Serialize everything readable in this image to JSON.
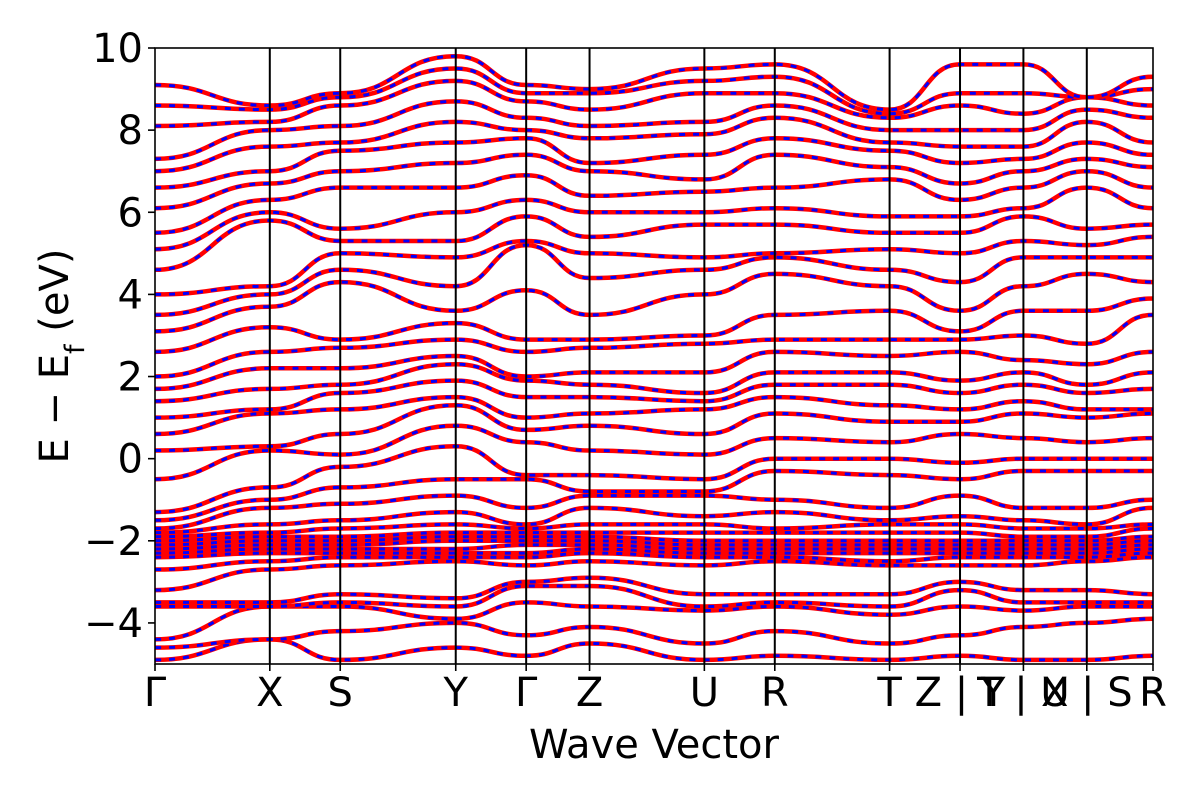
{
  "chart_data": {
    "type": "line",
    "title": "",
    "xlabel": "Wave Vector",
    "ylabel_parts": {
      "main": "E − E",
      "subscript": "f",
      "unit": " (eV)"
    },
    "ylim": [
      -5,
      10
    ],
    "yticks": [
      {
        "value": 10,
        "label": "10"
      },
      {
        "value": 8,
        "label": "8"
      },
      {
        "value": 6,
        "label": "6"
      },
      {
        "value": 4,
        "label": "4"
      },
      {
        "value": 2,
        "label": "2"
      },
      {
        "value": 0,
        "label": "0"
      },
      {
        "value": -2,
        "label": "−2"
      },
      {
        "value": -4,
        "label": "−4"
      }
    ],
    "xlim": [
      0,
      14.17
    ],
    "kpoints": [
      {
        "x": 0.0,
        "label": "Γ"
      },
      {
        "x": 1.63,
        "label": "X"
      },
      {
        "x": 2.63,
        "label": "S"
      },
      {
        "x": 4.27,
        "label": "Y"
      },
      {
        "x": 5.27,
        "label": "Γ"
      },
      {
        "x": 6.17,
        "label": "Z"
      },
      {
        "x": 7.8,
        "label": "U"
      },
      {
        "x": 8.8,
        "label": "R"
      },
      {
        "x": 10.43,
        "label": "T"
      },
      {
        "x": 11.43,
        "label": "Z | Y"
      },
      {
        "x": 12.33,
        "label": "T | U"
      },
      {
        "x": 13.23,
        "label": "X | S"
      },
      {
        "x": 14.17,
        "label": "R"
      }
    ],
    "grid": false,
    "legend": "none",
    "series_colors": {
      "solid": "#ff0000",
      "dashed": "#0000ff"
    },
    "band_segments": [
      {
        "x0": 0.0,
        "x1": 1.63,
        "y0": [
          -4.9,
          -4.6,
          -4.4,
          -3.6,
          -3.5,
          -3.2,
          -2.7,
          -2.4,
          -2.3,
          -2.2,
          -2.1,
          -2.0,
          -1.9,
          -1.8,
          -1.7,
          -1.5,
          -1.3,
          -0.5,
          0.2,
          0.6,
          1.0,
          1.4,
          1.7,
          2.0,
          2.6,
          3.1,
          3.5,
          4.0,
          4.6,
          5.1,
          5.5,
          6.1,
          6.6,
          7.0,
          7.3,
          8.1,
          8.6,
          9.1
        ],
        "y1": [
          -4.4,
          -4.4,
          -3.6,
          -3.6,
          -3.5,
          -2.7,
          -2.5,
          -2.3,
          -2.2,
          -2.1,
          -2.0,
          -1.9,
          -1.8,
          -1.6,
          -1.2,
          -1.0,
          -0.7,
          0.2,
          0.3,
          1.1,
          1.2,
          1.7,
          2.2,
          2.6,
          3.2,
          3.7,
          4.0,
          4.2,
          5.8,
          6.0,
          6.3,
          6.7,
          7.0,
          7.6,
          8.0,
          8.2,
          8.5,
          8.6
        ]
      },
      {
        "x0": 1.63,
        "x1": 2.63,
        "y0": [
          -4.4,
          -4.4,
          -3.6,
          -3.6,
          -3.5,
          -2.7,
          -2.5,
          -2.3,
          -2.2,
          -2.1,
          -2.0,
          -1.9,
          -1.8,
          -1.6,
          -1.2,
          -1.0,
          -0.7,
          0.2,
          0.3,
          1.1,
          1.2,
          1.7,
          2.2,
          2.6,
          3.2,
          3.7,
          4.0,
          4.2,
          5.8,
          6.0,
          6.3,
          6.7,
          7.0,
          7.6,
          8.0,
          8.2,
          8.5,
          8.6
        ],
        "y1": [
          -4.9,
          -4.2,
          -3.6,
          -3.5,
          -3.3,
          -2.6,
          -2.4,
          -2.3,
          -2.2,
          -2.1,
          -2.0,
          -1.9,
          -1.7,
          -1.5,
          -1.1,
          -0.7,
          -0.2,
          0.1,
          0.6,
          1.2,
          1.6,
          1.8,
          2.2,
          2.7,
          2.9,
          4.3,
          4.6,
          5.0,
          5.3,
          5.6,
          6.6,
          7.0,
          7.5,
          7.7,
          8.1,
          8.6,
          8.8,
          8.9
        ]
      },
      {
        "x0": 2.63,
        "x1": 4.27,
        "y0": [
          -4.9,
          -4.2,
          -3.6,
          -3.5,
          -3.3,
          -2.6,
          -2.4,
          -2.3,
          -2.2,
          -2.1,
          -2.0,
          -1.9,
          -1.7,
          -1.5,
          -1.1,
          -0.7,
          -0.2,
          0.1,
          0.6,
          1.2,
          1.6,
          1.8,
          2.2,
          2.7,
          2.9,
          4.3,
          4.6,
          5.0,
          5.3,
          5.6,
          6.6,
          7.0,
          7.5,
          7.7,
          8.1,
          8.6,
          8.8,
          8.9
        ],
        "y1": [
          -4.6,
          -4.0,
          -3.9,
          -3.6,
          -3.4,
          -2.5,
          -2.4,
          -2.3,
          -2.2,
          -2.0,
          -1.9,
          -1.8,
          -1.6,
          -1.3,
          -0.9,
          -0.5,
          0.3,
          0.8,
          1.3,
          1.5,
          1.9,
          2.3,
          2.5,
          2.9,
          3.3,
          3.6,
          4.2,
          4.9,
          5.3,
          6.0,
          6.6,
          7.2,
          7.7,
          8.2,
          8.7,
          9.2,
          9.5,
          9.8
        ]
      },
      {
        "x0": 4.27,
        "x1": 5.27,
        "y0": [
          -4.6,
          -4.0,
          -3.9,
          -3.6,
          -3.4,
          -2.5,
          -2.4,
          -2.3,
          -2.2,
          -2.0,
          -1.9,
          -1.8,
          -1.6,
          -1.3,
          -0.9,
          -0.5,
          0.3,
          0.8,
          1.3,
          1.5,
          1.9,
          2.3,
          2.5,
          2.9,
          3.3,
          3.6,
          4.2,
          4.9,
          5.3,
          6.0,
          6.6,
          7.2,
          7.7,
          8.2,
          8.7,
          9.2,
          9.5,
          9.8
        ],
        "y1": [
          -4.8,
          -4.3,
          -3.5,
          -3.1,
          -3.0,
          -2.6,
          -2.4,
          -2.3,
          -2.1,
          -2.0,
          -1.9,
          -1.8,
          -1.7,
          -1.6,
          -1.2,
          -0.5,
          -0.4,
          0.4,
          0.7,
          1.0,
          1.5,
          1.9,
          2.0,
          2.6,
          2.9,
          4.1,
          5.2,
          5.3,
          5.9,
          6.3,
          6.9,
          7.4,
          7.8,
          8.0,
          8.3,
          8.7,
          8.9,
          9.1
        ]
      },
      {
        "x0": 5.27,
        "x1": 6.17,
        "y0": [
          -4.8,
          -4.3,
          -3.5,
          -3.1,
          -3.0,
          -2.6,
          -2.4,
          -2.3,
          -2.1,
          -2.0,
          -1.9,
          -1.8,
          -1.7,
          -1.6,
          -1.2,
          -0.5,
          -0.4,
          0.4,
          0.7,
          1.0,
          1.5,
          1.9,
          2.0,
          2.6,
          2.9,
          4.1,
          5.2,
          5.3,
          5.9,
          6.3,
          6.9,
          7.4,
          7.8,
          8.0,
          8.3,
          8.7,
          8.9,
          9.1
        ],
        "y1": [
          -4.5,
          -4.1,
          -3.6,
          -3.1,
          -2.9,
          -2.5,
          -2.3,
          -2.2,
          -2.1,
          -2.0,
          -1.9,
          -1.8,
          -1.6,
          -1.2,
          -0.9,
          -0.8,
          -0.4,
          0.2,
          0.8,
          1.1,
          1.5,
          1.8,
          2.1,
          2.7,
          2.9,
          3.5,
          4.4,
          5.0,
          5.4,
          6.0,
          6.4,
          7.0,
          7.2,
          7.8,
          8.1,
          8.5,
          8.9,
          9.0
        ]
      },
      {
        "x0": 6.17,
        "x1": 7.8,
        "y0": [
          -4.5,
          -4.1,
          -3.6,
          -3.1,
          -2.9,
          -2.5,
          -2.3,
          -2.2,
          -2.1,
          -2.0,
          -1.9,
          -1.8,
          -1.6,
          -1.2,
          -0.9,
          -0.8,
          -0.4,
          0.2,
          0.8,
          1.1,
          1.5,
          1.8,
          2.1,
          2.7,
          2.9,
          3.5,
          4.4,
          5.0,
          5.4,
          6.0,
          6.4,
          7.0,
          7.2,
          7.8,
          8.1,
          8.5,
          8.9,
          9.0
        ],
        "y1": [
          -4.9,
          -4.5,
          -3.7,
          -3.6,
          -3.3,
          -2.6,
          -2.4,
          -2.3,
          -2.2,
          -2.1,
          -2.0,
          -1.8,
          -1.6,
          -1.4,
          -0.9,
          -0.8,
          -0.5,
          0.1,
          0.6,
          1.2,
          1.4,
          1.6,
          2.1,
          2.8,
          3.0,
          4.0,
          4.6,
          4.9,
          5.7,
          6.0,
          6.5,
          6.8,
          7.4,
          7.9,
          8.2,
          8.9,
          9.2,
          9.5
        ]
      },
      {
        "x0": 7.8,
        "x1": 8.8,
        "y0": [
          -4.9,
          -4.5,
          -3.7,
          -3.6,
          -3.3,
          -2.6,
          -2.4,
          -2.3,
          -2.2,
          -2.1,
          -2.0,
          -1.8,
          -1.6,
          -1.4,
          -0.9,
          -0.8,
          -0.5,
          0.1,
          0.6,
          1.2,
          1.4,
          1.6,
          2.1,
          2.8,
          3.0,
          4.0,
          4.6,
          4.9,
          5.7,
          6.0,
          6.5,
          6.8,
          7.4,
          7.9,
          8.2,
          8.9,
          9.2,
          9.5
        ],
        "y1": [
          -4.8,
          -4.2,
          -3.6,
          -3.5,
          -3.3,
          -2.5,
          -2.4,
          -2.3,
          -2.2,
          -2.1,
          -2.0,
          -1.8,
          -1.7,
          -1.3,
          -1.0,
          -0.3,
          0.0,
          0.5,
          1.1,
          1.5,
          1.8,
          2.1,
          2.6,
          2.9,
          3.5,
          4.5,
          4.9,
          5.0,
          5.7,
          6.1,
          6.6,
          7.4,
          7.8,
          8.3,
          8.6,
          8.9,
          9.3,
          9.6
        ]
      },
      {
        "x0": 8.8,
        "x1": 10.43,
        "y0": [
          -4.8,
          -4.2,
          -3.6,
          -3.5,
          -3.3,
          -2.5,
          -2.4,
          -2.3,
          -2.2,
          -2.1,
          -2.0,
          -1.8,
          -1.7,
          -1.3,
          -1.0,
          -0.3,
          0.0,
          0.5,
          1.1,
          1.5,
          1.8,
          2.1,
          2.6,
          2.9,
          3.5,
          4.5,
          4.9,
          5.0,
          5.7,
          6.1,
          6.6,
          7.4,
          7.8,
          8.3,
          8.6,
          8.9,
          9.3,
          9.6
        ],
        "y1": [
          -4.9,
          -4.5,
          -3.8,
          -3.6,
          -3.3,
          -2.6,
          -2.5,
          -2.3,
          -2.2,
          -2.1,
          -2.0,
          -1.8,
          -1.6,
          -1.5,
          -1.2,
          -0.4,
          0.0,
          0.4,
          0.9,
          1.3,
          1.8,
          2.1,
          2.5,
          2.9,
          3.6,
          4.2,
          4.6,
          5.1,
          5.5,
          5.9,
          6.8,
          7.1,
          7.5,
          7.7,
          8.0,
          8.3,
          8.4,
          8.5
        ]
      },
      {
        "x0": 10.43,
        "x1": 11.43,
        "y0": [
          -4.9,
          -4.5,
          -3.8,
          -3.6,
          -3.3,
          -2.6,
          -2.5,
          -2.3,
          -2.2,
          -2.1,
          -2.0,
          -1.8,
          -1.6,
          -1.5,
          -1.2,
          -0.4,
          0.0,
          0.4,
          0.9,
          1.3,
          1.8,
          2.1,
          2.5,
          2.9,
          3.6,
          4.2,
          4.6,
          5.1,
          5.5,
          5.9,
          6.8,
          7.1,
          7.5,
          7.7,
          8.0,
          8.3,
          8.4,
          8.5
        ],
        "y1": [
          -4.8,
          -4.3,
          -3.6,
          -3.2,
          -3.0,
          -2.6,
          -2.4,
          -2.3,
          -2.2,
          -2.1,
          -2.0,
          -1.8,
          -1.6,
          -1.4,
          -0.9,
          -0.5,
          -0.1,
          0.6,
          0.9,
          1.2,
          1.6,
          1.9,
          2.6,
          2.9,
          3.1,
          3.6,
          4.3,
          5.0,
          5.5,
          5.9,
          6.3,
          6.7,
          7.2,
          7.6,
          8.0,
          8.6,
          8.9,
          9.6
        ]
      },
      {
        "x0": 11.43,
        "x1": 12.33,
        "y0": [
          -4.8,
          -4.3,
          -3.6,
          -3.2,
          -3.0,
          -2.6,
          -2.4,
          -2.3,
          -2.2,
          -2.1,
          -2.0,
          -1.8,
          -1.6,
          -1.4,
          -0.9,
          -0.5,
          -0.1,
          0.6,
          0.9,
          1.2,
          1.6,
          1.9,
          2.6,
          2.9,
          3.1,
          3.6,
          4.3,
          5.0,
          5.5,
          5.9,
          6.3,
          6.7,
          7.2,
          7.6,
          8.0,
          8.6,
          8.9,
          9.6
        ],
        "y1": [
          -4.9,
          -4.1,
          -3.7,
          -3.5,
          -3.2,
          -2.6,
          -2.4,
          -2.3,
          -2.2,
          -2.1,
          -2.0,
          -1.9,
          -1.7,
          -1.5,
          -1.2,
          -0.3,
          0.0,
          0.5,
          1.1,
          1.4,
          1.8,
          2.1,
          2.4,
          3.0,
          3.6,
          4.2,
          4.9,
          5.3,
          5.9,
          6.1,
          6.6,
          7.0,
          7.3,
          7.6,
          8.0,
          8.4,
          8.9,
          9.6
        ]
      },
      {
        "x0": 12.33,
        "x1": 13.23,
        "y0": [
          -4.9,
          -4.1,
          -3.7,
          -3.5,
          -3.2,
          -2.6,
          -2.4,
          -2.3,
          -2.2,
          -2.1,
          -2.0,
          -1.9,
          -1.7,
          -1.5,
          -1.2,
          -0.3,
          0.0,
          0.5,
          1.1,
          1.4,
          1.8,
          2.1,
          2.4,
          3.0,
          3.6,
          4.2,
          4.9,
          5.3,
          5.9,
          6.1,
          6.6,
          7.0,
          7.3,
          7.6,
          8.0,
          8.4,
          8.9,
          9.6
        ],
        "y1": [
          -4.9,
          -4.0,
          -3.6,
          -3.5,
          -3.2,
          -2.5,
          -2.4,
          -2.3,
          -2.2,
          -2.1,
          -2.0,
          -1.9,
          -1.7,
          -1.6,
          -1.2,
          -0.3,
          0.0,
          0.4,
          1.0,
          1.2,
          1.6,
          1.8,
          2.3,
          2.8,
          3.6,
          4.5,
          4.9,
          5.2,
          5.6,
          6.6,
          7.0,
          7.3,
          7.7,
          8.2,
          8.5,
          8.8,
          8.8,
          8.8
        ]
      },
      {
        "x0": 13.23,
        "x1": 14.17,
        "y0": [
          -4.9,
          -4.0,
          -3.6,
          -3.5,
          -3.2,
          -2.5,
          -2.4,
          -2.3,
          -2.2,
          -2.1,
          -2.0,
          -1.9,
          -1.7,
          -1.6,
          -1.2,
          -0.3,
          0.0,
          0.4,
          1.0,
          1.2,
          1.6,
          1.8,
          2.3,
          2.8,
          3.6,
          4.5,
          4.9,
          5.2,
          5.6,
          6.6,
          7.0,
          7.3,
          7.7,
          8.2,
          8.5,
          8.8,
          8.8,
          8.8
        ],
        "y1": [
          -4.8,
          -3.9,
          -3.6,
          -3.5,
          -3.3,
          -2.4,
          -2.3,
          -2.2,
          -2.1,
          -2.0,
          -1.9,
          -1.7,
          -1.6,
          -1.2,
          -1.0,
          -0.3,
          0.0,
          0.5,
          1.1,
          1.2,
          1.7,
          2.1,
          2.6,
          3.5,
          3.9,
          4.3,
          4.9,
          5.4,
          5.7,
          6.1,
          6.6,
          7.1,
          7.4,
          7.7,
          8.3,
          8.6,
          9.0,
          9.3
        ]
      }
    ]
  }
}
